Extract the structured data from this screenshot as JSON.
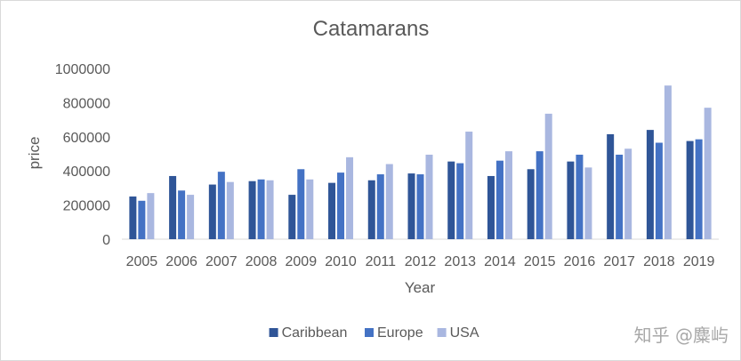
{
  "chart_data": {
    "type": "bar",
    "title": "Catamarans",
    "xlabel": "Year",
    "ylabel": "price",
    "ylim": [
      0,
      1000000
    ],
    "yticks": [
      0,
      200000,
      400000,
      600000,
      800000,
      1000000
    ],
    "grid": false,
    "legend_position": "bottom",
    "categories": [
      "2005",
      "2006",
      "2007",
      "2008",
      "2009",
      "2010",
      "2011",
      "2012",
      "2013",
      "2014",
      "2015",
      "2016",
      "2017",
      "2018",
      "2019"
    ],
    "series": [
      {
        "name": "Caribbean",
        "color": "#2f5597",
        "values": [
          250000,
          370000,
          320000,
          340000,
          260000,
          330000,
          345000,
          385000,
          455000,
          370000,
          410000,
          455000,
          615000,
          640000,
          575000
        ]
      },
      {
        "name": "Europe",
        "color": "#4472c4",
        "values": [
          225000,
          285000,
          395000,
          350000,
          410000,
          390000,
          380000,
          380000,
          445000,
          460000,
          515000,
          495000,
          495000,
          565000,
          585000
        ]
      },
      {
        "name": "USA",
        "color": "#a9b7e0",
        "values": [
          270000,
          260000,
          335000,
          345000,
          350000,
          480000,
          440000,
          495000,
          630000,
          515000,
          735000,
          420000,
          530000,
          900000,
          770000
        ]
      }
    ]
  },
  "watermark": "知乎 @麋屿"
}
